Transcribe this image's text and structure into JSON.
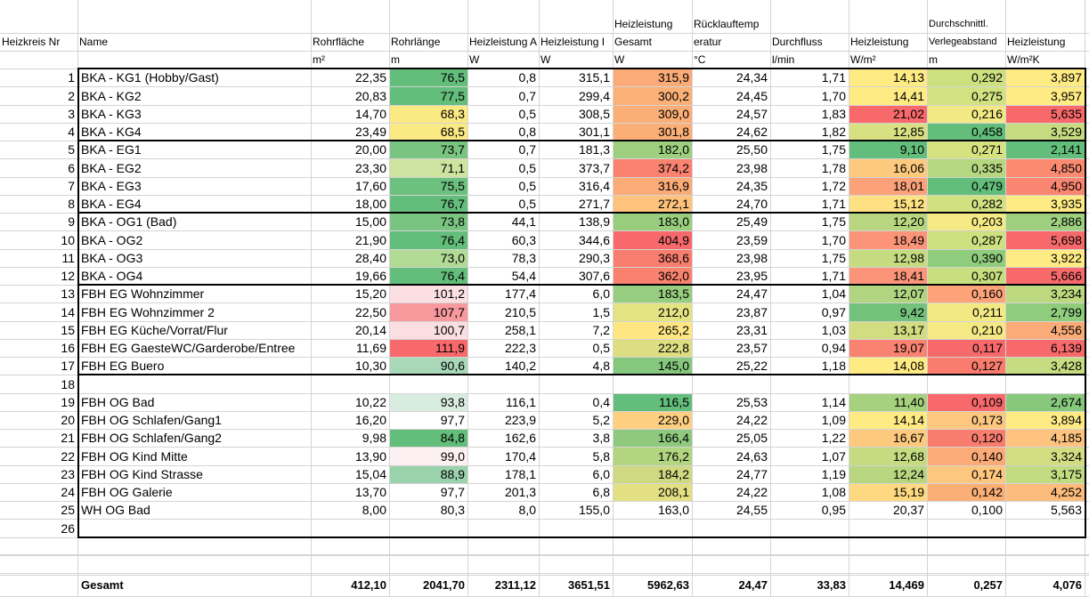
{
  "headers": {
    "nr": {
      "l1": "",
      "l2": "Heizkreis Nr",
      "unit": ""
    },
    "name": {
      "l1": "",
      "l2": "Name",
      "unit": ""
    },
    "flaeche": {
      "l1": "",
      "l2": "Rohrfläche",
      "unit": "m²"
    },
    "laenge": {
      "l1": "",
      "l2": "Rohrlänge",
      "unit": "m"
    },
    "heizA": {
      "l1": "",
      "l2": "Heizleistung A",
      "unit": "W"
    },
    "heizI": {
      "l1": "",
      "l2": "Heizleistung I",
      "unit": "W"
    },
    "gesamt": {
      "l1": "Heizleistung",
      "l2": "Gesamt",
      "unit": "W"
    },
    "ruecklauf": {
      "l1": "Rücklauftemp",
      "l2": "eratur",
      "unit": "°C"
    },
    "durchfluss": {
      "l1": "",
      "l2": "Durchfluss",
      "unit": "l/min"
    },
    "heizm2": {
      "l1": "",
      "l2": "Heizleistung",
      "unit": "W/m²"
    },
    "abstand": {
      "l1": "Durchschnittl.",
      "l2": "Verlegeabstand",
      "unit": "m"
    },
    "heizk": {
      "l1": "",
      "l2": "Heizleistung",
      "unit": "W/m²K"
    }
  },
  "rows": [
    {
      "nr": "1",
      "name": "BKA - KG1 (Hobby/Gast)",
      "flaeche": "22,35",
      "laenge": "76,5",
      "heizA": "0,8",
      "heizI": "315,1",
      "gesamt": "315,9",
      "ruecklauf": "24,34",
      "durchfluss": "1,71",
      "heizm2": "14,13",
      "abstand": "0,292",
      "heizk": "3,897"
    },
    {
      "nr": "2",
      "name": "BKA - KG2",
      "flaeche": "20,83",
      "laenge": "77,5",
      "heizA": "0,7",
      "heizI": "299,4",
      "gesamt": "300,2",
      "ruecklauf": "24,45",
      "durchfluss": "1,70",
      "heizm2": "14,41",
      "abstand": "0,275",
      "heizk": "3,957"
    },
    {
      "nr": "3",
      "name": "BKA - KG3",
      "flaeche": "14,70",
      "laenge": "68,3",
      "heizA": "0,5",
      "heizI": "308,5",
      "gesamt": "309,0",
      "ruecklauf": "24,57",
      "durchfluss": "1,83",
      "heizm2": "21,02",
      "abstand": "0,216",
      "heizk": "5,635"
    },
    {
      "nr": "4",
      "name": "BKA - KG4",
      "flaeche": "23,49",
      "laenge": "68,5",
      "heizA": "0,8",
      "heizI": "301,1",
      "gesamt": "301,8",
      "ruecklauf": "24,62",
      "durchfluss": "1,82",
      "heizm2": "12,85",
      "abstand": "0,458",
      "heizk": "3,529"
    },
    {
      "nr": "5",
      "name": "BKA - EG1",
      "flaeche": "20,00",
      "laenge": "73,7",
      "heizA": "0,7",
      "heizI": "181,3",
      "gesamt": "182,0",
      "ruecklauf": "25,50",
      "durchfluss": "1,75",
      "heizm2": "9,10",
      "abstand": "0,271",
      "heizk": "2,141"
    },
    {
      "nr": "6",
      "name": "BKA - EG2",
      "flaeche": "23,30",
      "laenge": "71,1",
      "heizA": "0,5",
      "heizI": "373,7",
      "gesamt": "374,2",
      "ruecklauf": "23,98",
      "durchfluss": "1,78",
      "heizm2": "16,06",
      "abstand": "0,335",
      "heizk": "4,850"
    },
    {
      "nr": "7",
      "name": "BKA - EG3",
      "flaeche": "17,60",
      "laenge": "75,5",
      "heizA": "0,5",
      "heizI": "316,4",
      "gesamt": "316,9",
      "ruecklauf": "24,35",
      "durchfluss": "1,72",
      "heizm2": "18,01",
      "abstand": "0,479",
      "heizk": "4,950"
    },
    {
      "nr": "8",
      "name": "BKA - EG4",
      "flaeche": "18,00",
      "laenge": "76,7",
      "heizA": "0,5",
      "heizI": "271,7",
      "gesamt": "272,1",
      "ruecklauf": "24,70",
      "durchfluss": "1,71",
      "heizm2": "15,12",
      "abstand": "0,282",
      "heizk": "3,935"
    },
    {
      "nr": "9",
      "name": "BKA - OG1 (Bad)",
      "flaeche": "15,00",
      "laenge": "73,8",
      "heizA": "44,1",
      "heizI": "138,9",
      "gesamt": "183,0",
      "ruecklauf": "25,49",
      "durchfluss": "1,75",
      "heizm2": "12,20",
      "abstand": "0,203",
      "heizk": "2,886"
    },
    {
      "nr": "10",
      "name": "BKA - OG2",
      "flaeche": "21,90",
      "laenge": "76,4",
      "heizA": "60,3",
      "heizI": "344,6",
      "gesamt": "404,9",
      "ruecklauf": "23,59",
      "durchfluss": "1,70",
      "heizm2": "18,49",
      "abstand": "0,287",
      "heizk": "5,698"
    },
    {
      "nr": "11",
      "name": "BKA - OG3",
      "flaeche": "28,40",
      "laenge": "73,0",
      "heizA": "78,3",
      "heizI": "290,3",
      "gesamt": "368,6",
      "ruecklauf": "23,98",
      "durchfluss": "1,75",
      "heizm2": "12,98",
      "abstand": "0,390",
      "heizk": "3,922"
    },
    {
      "nr": "12",
      "name": "BKA - OG4",
      "flaeche": "19,66",
      "laenge": "76,4",
      "heizA": "54,4",
      "heizI": "307,6",
      "gesamt": "362,0",
      "ruecklauf": "23,95",
      "durchfluss": "1,71",
      "heizm2": "18,41",
      "abstand": "0,307",
      "heizk": "5,666"
    },
    {
      "nr": "13",
      "name": "FBH EG Wohnzimmer",
      "flaeche": "15,20",
      "laenge": "101,2",
      "heizA": "177,4",
      "heizI": "6,0",
      "gesamt": "183,5",
      "ruecklauf": "24,47",
      "durchfluss": "1,04",
      "heizm2": "12,07",
      "abstand": "0,160",
      "heizk": "3,234"
    },
    {
      "nr": "14",
      "name": "FBH EG Wohnzimmer 2",
      "flaeche": "22,50",
      "laenge": "107,7",
      "heizA": "210,5",
      "heizI": "1,5",
      "gesamt": "212,0",
      "ruecklauf": "23,87",
      "durchfluss": "0,97",
      "heizm2": "9,42",
      "abstand": "0,211",
      "heizk": "2,799"
    },
    {
      "nr": "15",
      "name": "FBH EG Küche/Vorrat/Flur",
      "flaeche": "20,14",
      "laenge": "100,7",
      "heizA": "258,1",
      "heizI": "7,2",
      "gesamt": "265,2",
      "ruecklauf": "23,31",
      "durchfluss": "1,03",
      "heizm2": "13,17",
      "abstand": "0,210",
      "heizk": "4,556"
    },
    {
      "nr": "16",
      "name": "FBH EG GaesteWC/Garderobe/Entree",
      "flaeche": "11,69",
      "laenge": "111,9",
      "heizA": "222,3",
      "heizI": "0,5",
      "gesamt": "222,8",
      "ruecklauf": "23,57",
      "durchfluss": "0,94",
      "heizm2": "19,07",
      "abstand": "0,117",
      "heizk": "6,139"
    },
    {
      "nr": "17",
      "name": "FBH EG Buero",
      "flaeche": "10,30",
      "laenge": "90,6",
      "heizA": "140,2",
      "heizI": "4,8",
      "gesamt": "145,0",
      "ruecklauf": "25,22",
      "durchfluss": "1,18",
      "heizm2": "14,08",
      "abstand": "0,127",
      "heizk": "3,428"
    },
    {
      "nr": "18",
      "name": "",
      "flaeche": "",
      "laenge": "",
      "heizA": "",
      "heizI": "",
      "gesamt": "",
      "ruecklauf": "",
      "durchfluss": "",
      "heizm2": "",
      "abstand": "",
      "heizk": ""
    },
    {
      "nr": "19",
      "name": "FBH OG Bad",
      "flaeche": "10,22",
      "laenge": "93,8",
      "heizA": "116,1",
      "heizI": "0,4",
      "gesamt": "116,5",
      "ruecklauf": "25,53",
      "durchfluss": "1,14",
      "heizm2": "11,40",
      "abstand": "0,109",
      "heizk": "2,674"
    },
    {
      "nr": "20",
      "name": "FBH OG Schlafen/Gang1",
      "flaeche": "16,20",
      "laenge": "97,7",
      "heizA": "223,9",
      "heizI": "5,2",
      "gesamt": "229,0",
      "ruecklauf": "24,22",
      "durchfluss": "1,09",
      "heizm2": "14,14",
      "abstand": "0,173",
      "heizk": "3,894"
    },
    {
      "nr": "21",
      "name": "FBH OG Schlafen/Gang2",
      "flaeche": "9,98",
      "laenge": "84,8",
      "heizA": "162,6",
      "heizI": "3,8",
      "gesamt": "166,4",
      "ruecklauf": "25,05",
      "durchfluss": "1,22",
      "heizm2": "16,67",
      "abstand": "0,120",
      "heizk": "4,185"
    },
    {
      "nr": "22",
      "name": "FBH OG Kind Mitte",
      "flaeche": "13,90",
      "laenge": "99,0",
      "heizA": "170,4",
      "heizI": "5,8",
      "gesamt": "176,2",
      "ruecklauf": "24,63",
      "durchfluss": "1,07",
      "heizm2": "12,68",
      "abstand": "0,140",
      "heizk": "3,324"
    },
    {
      "nr": "23",
      "name": "FBH OG Kind Strasse",
      "flaeche": "15,04",
      "laenge": "88,9",
      "heizA": "178,1",
      "heizI": "6,0",
      "gesamt": "184,2",
      "ruecklauf": "24,77",
      "durchfluss": "1,19",
      "heizm2": "12,24",
      "abstand": "0,174",
      "heizk": "3,175"
    },
    {
      "nr": "24",
      "name": "FBH OG Galerie",
      "flaeche": "13,70",
      "laenge": "97,7",
      "heizA": "201,3",
      "heizI": "6,8",
      "gesamt": "208,1",
      "ruecklauf": "24,22",
      "durchfluss": "1,08",
      "heizm2": "15,19",
      "abstand": "0,142",
      "heizk": "4,252"
    },
    {
      "nr": "25",
      "name": "WH OG Bad",
      "flaeche": "8,00",
      "laenge": "80,3",
      "heizA": "8,0",
      "heizI": "155,0",
      "gesamt": "163,0",
      "ruecklauf": "24,55",
      "durchfluss": "0,95",
      "heizm2": "20,37",
      "abstand": "0,100",
      "heizk": "5,563"
    },
    {
      "nr": "26",
      "name": "",
      "flaeche": "",
      "laenge": "",
      "heizA": "",
      "heizI": "",
      "gesamt": "",
      "ruecklauf": "",
      "durchfluss": "",
      "heizm2": "",
      "abstand": "",
      "heizk": ""
    }
  ],
  "colors": {
    "laenge": [
      "#63be7b",
      "#63be7b",
      "#fbe983",
      "#fbe983",
      "#7ac481",
      "#cfe3a0",
      "#6cc17e",
      "#63be7b",
      "#7ac481",
      "#63be7b",
      "#b1da95",
      "#63be7b",
      "#fbdfe2",
      "#f8999e",
      "#fbdee1",
      "#f8696b",
      "#a8d8b7",
      "",
      "#d8ede0",
      "#ffffff",
      "#63be7b",
      "#fdf0f2",
      "#9ad2ab",
      "#ffffff",
      "#ffffff",
      ""
    ],
    "gesamt": [
      "#fbab77",
      "#fbb078",
      "#fbaf77",
      "#fbaf77",
      "#9ecf7f",
      "#f98370",
      "#fbab77",
      "#fdc27b",
      "#99cd7e",
      "#f8696b",
      "#f97e6f",
      "#f9826f",
      "#97cd7e",
      "#e3e383",
      "#fee783",
      "#ddde82",
      "#84c77d",
      "",
      "#63be7b",
      "#fecf80",
      "#8ec97d",
      "#b2d57f",
      "#ced981",
      "#e2e083",
      "#ffffff",
      ""
    ],
    "heizm2": [
      "#ffeb84",
      "#ffeb84",
      "#f8696b",
      "#d8e081",
      "#63be7b",
      "#fdca7d",
      "#fba27a",
      "#fde182",
      "#b8d67f",
      "#fb9478",
      "#c5db80",
      "#fb9478",
      "#b0d47f",
      "#73c27c",
      "#d2dd81",
      "#f98370",
      "#ffeb84",
      "",
      "#a6d17e",
      "#ffeb84",
      "#fdca7d",
      "#c5db80",
      "#b8d67f",
      "#fed981",
      "#ffffff",
      ""
    ],
    "abstand": [
      "#cde07f",
      "#d3e280",
      "#f2e984",
      "#63be7b",
      "#d5e280",
      "#b4d77f",
      "#63be7b",
      "#d1e180",
      "#f4e984",
      "#cee07f",
      "#8fcc7c",
      "#c8df7f",
      "#fca37a",
      "#f2e984",
      "#f4e984",
      "#f8696b",
      "#f97c6e",
      "",
      "#f8696b",
      "#fec780",
      "#f97d6f",
      "#fbab77",
      "#fec77f",
      "#fbaf77",
      "#ffffff",
      ""
    ],
    "heizk": [
      "#ffeb84",
      "#ffeb84",
      "#f8696b",
      "#c7dc80",
      "#63be7b",
      "#fa8b71",
      "#fa8570",
      "#ffeb84",
      "#9ecf7f",
      "#f8696b",
      "#ffeb84",
      "#f8696b",
      "#bdd980",
      "#8fcc7c",
      "#fbab77",
      "#f8696b",
      "#c6dc80",
      "",
      "#87c87c",
      "#ffeb84",
      "#fec37e",
      "#d2dd81",
      "#c1db80",
      "#fdbb7c",
      "#ffffff",
      ""
    ]
  },
  "total": {
    "label": "Gesamt",
    "flaeche": "412,10",
    "laenge": "2041,70",
    "heizA": "2311,12",
    "heizI": "3651,51",
    "gesamt": "5962,63",
    "ruecklauf": "24,47",
    "durchfluss": "33,83",
    "heizm2": "14,469",
    "abstand": "0,257",
    "heizk": "4,076"
  }
}
